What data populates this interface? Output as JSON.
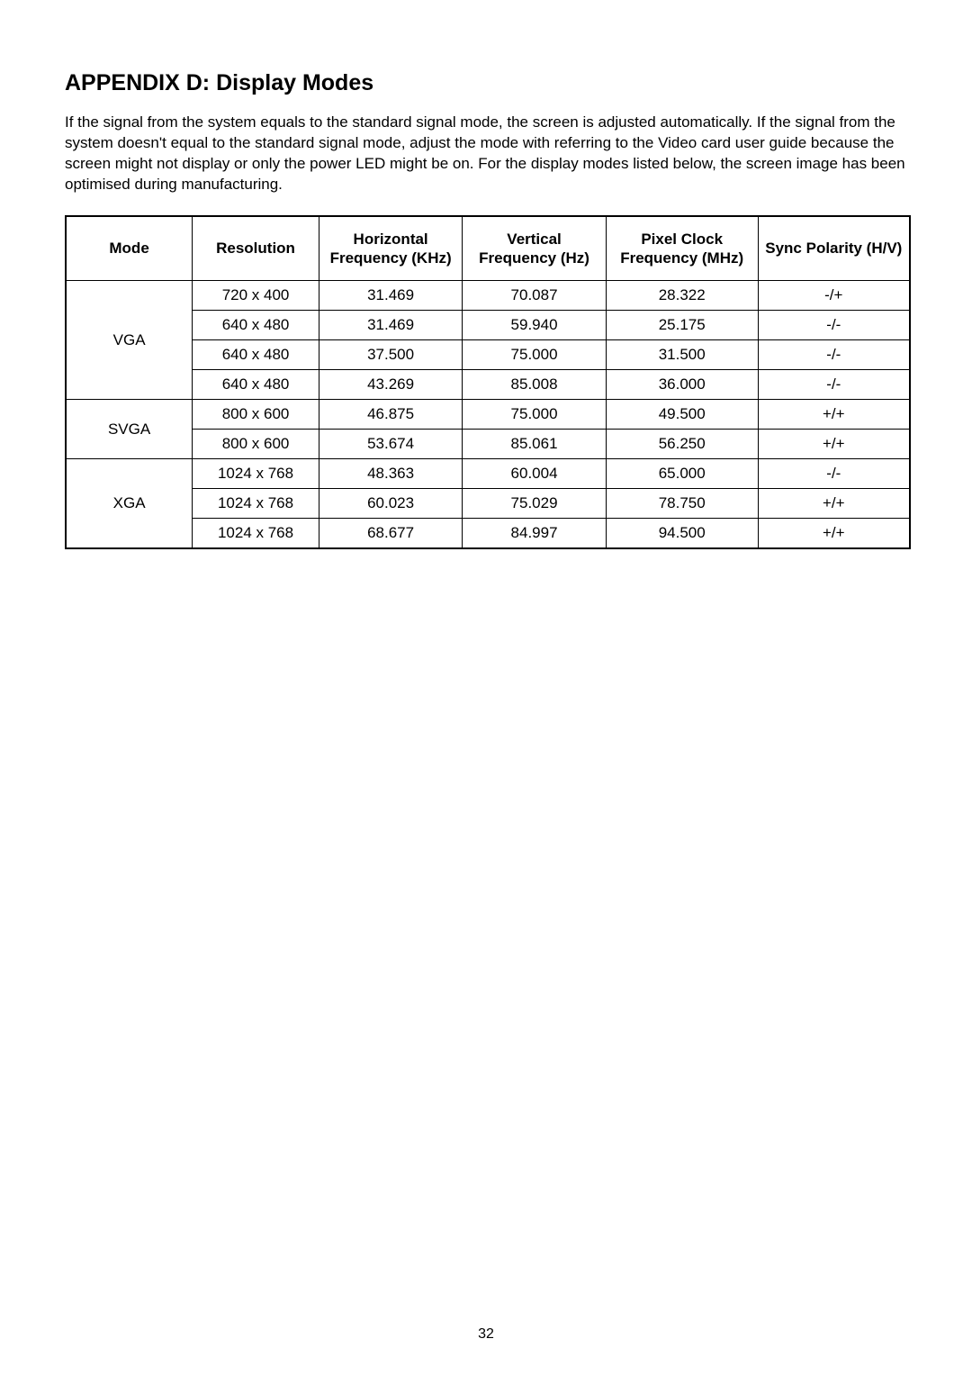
{
  "heading": "APPENDIX D: Display Modes",
  "intro": "If the signal from the system equals to the standard signal mode, the screen is adjusted automatically. If the signal from the system doesn't equal to the standard signal mode, adjust the mode with referring to the Video card user guide because the screen might not display or only the power LED might be on. For the display modes listed below, the screen image has been optimised during manufacturing.",
  "table": {
    "headers": {
      "mode": "Mode",
      "resolution": "Resolution",
      "hfreq": "Horizontal Frequency (KHz)",
      "vfreq": "Vertical Frequency (Hz)",
      "pclock": "Pixel Clock Frequency (MHz)",
      "sync": "Sync Polarity (H/V)"
    },
    "groups": [
      {
        "mode": "VGA",
        "rows": [
          {
            "res": "720 x 400",
            "hf": "31.469",
            "vf": "70.087",
            "pc": "28.322",
            "sp": "-/+"
          },
          {
            "res": "640 x 480",
            "hf": "31.469",
            "vf": "59.940",
            "pc": "25.175",
            "sp": "-/-"
          },
          {
            "res": "640 x 480",
            "hf": "37.500",
            "vf": "75.000",
            "pc": "31.500",
            "sp": "-/-"
          },
          {
            "res": "640 x 480",
            "hf": "43.269",
            "vf": "85.008",
            "pc": "36.000",
            "sp": "-/-"
          }
        ]
      },
      {
        "mode": "SVGA",
        "rows": [
          {
            "res": "800 x 600",
            "hf": "46.875",
            "vf": "75.000",
            "pc": "49.500",
            "sp": "+/+"
          },
          {
            "res": "800 x 600",
            "hf": "53.674",
            "vf": "85.061",
            "pc": "56.250",
            "sp": "+/+"
          }
        ]
      },
      {
        "mode": "XGA",
        "rows": [
          {
            "res": "1024 x 768",
            "hf": "48.363",
            "vf": "60.004",
            "pc": "65.000",
            "sp": "-/-"
          },
          {
            "res": "1024 x 768",
            "hf": "60.023",
            "vf": "75.029",
            "pc": "78.750",
            "sp": "+/+"
          },
          {
            "res": "1024 x 768",
            "hf": "68.677",
            "vf": "84.997",
            "pc": "94.500",
            "sp": "+/+"
          }
        ]
      }
    ]
  },
  "pageNumber": "32"
}
